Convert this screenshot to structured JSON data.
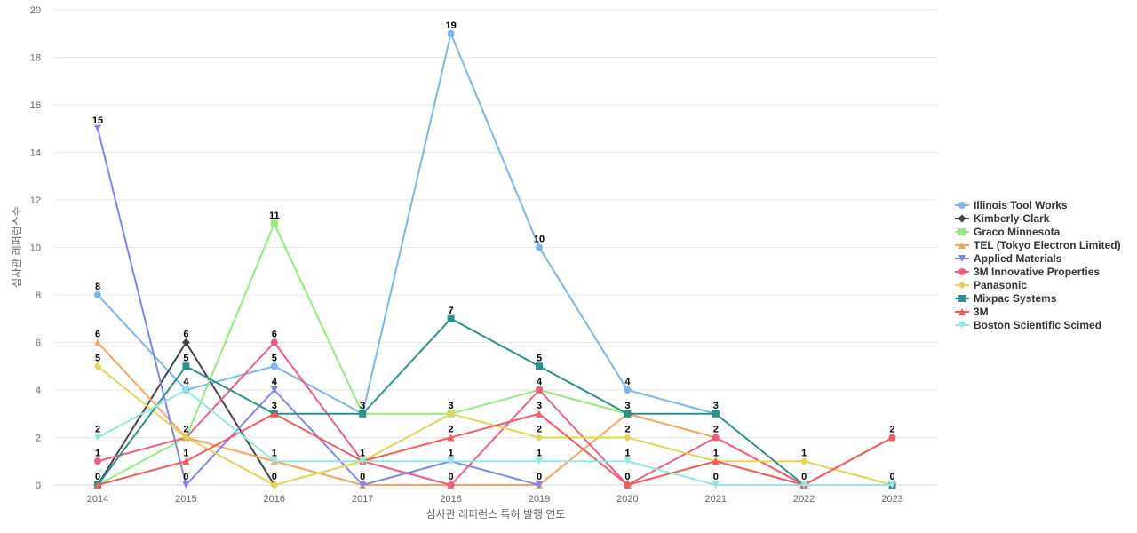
{
  "chart_data": {
    "type": "line",
    "title": "",
    "xlabel": "심사관 레퍼런스 특허 발행 연도",
    "ylabel": "심사관 레퍼런스수",
    "x": [
      "2014",
      "2015",
      "2016",
      "2017",
      "2018",
      "2019",
      "2020",
      "2021",
      "2022",
      "2023"
    ],
    "ylim": [
      0,
      20
    ],
    "yticks": [
      0,
      2,
      4,
      6,
      8,
      10,
      12,
      14,
      16,
      18,
      20
    ],
    "grid": true,
    "legend_position": "right",
    "series": [
      {
        "name": "Illinois Tool Works",
        "color": "#7cb5ec",
        "marker": "circle",
        "values": [
          8,
          4,
          5,
          3,
          19,
          10,
          4,
          3,
          null,
          null
        ]
      },
      {
        "name": "Kimberly-Clark",
        "color": "#434348",
        "marker": "diamond",
        "values": [
          0,
          6,
          0,
          null,
          null,
          null,
          null,
          null,
          null,
          null
        ]
      },
      {
        "name": "Graco Minnesota",
        "color": "#90ed7d",
        "marker": "square",
        "values": [
          0,
          2,
          11,
          3,
          3,
          4,
          3,
          null,
          null,
          null
        ]
      },
      {
        "name": "TEL (Tokyo Electron Limited)",
        "color": "#f7a35c",
        "marker": "triangle",
        "values": [
          6,
          2,
          1,
          0,
          0,
          0,
          3,
          2,
          0,
          null
        ]
      },
      {
        "name": "Applied Materials",
        "color": "#8085e9",
        "marker": "triangle-down",
        "values": [
          15,
          0,
          4,
          0,
          1,
          0,
          null,
          null,
          null,
          null
        ]
      },
      {
        "name": "3M Innovative Properties",
        "color": "#f15c80",
        "marker": "circle",
        "values": [
          1,
          2,
          6,
          1,
          0,
          4,
          0,
          2,
          0,
          2
        ]
      },
      {
        "name": "Panasonic",
        "color": "#e4d354",
        "marker": "diamond",
        "values": [
          5,
          2,
          0,
          1,
          3,
          2,
          2,
          1,
          1,
          0
        ]
      },
      {
        "name": "Mixpac Systems",
        "color": "#2b908f",
        "marker": "square",
        "values": [
          0,
          5,
          3,
          3,
          7,
          5,
          3,
          3,
          0,
          0
        ]
      },
      {
        "name": "3M",
        "color": "#f45b5b",
        "marker": "triangle",
        "values": [
          0,
          1,
          3,
          1,
          2,
          3,
          0,
          1,
          0,
          2
        ]
      },
      {
        "name": "Boston Scientific Scimed",
        "color": "#91e8e1",
        "marker": "triangle-down",
        "values": [
          2,
          4,
          1,
          1,
          1,
          1,
          1,
          0,
          0,
          0
        ]
      }
    ],
    "data_labels": [
      {
        "x": "2014",
        "value": 15
      },
      {
        "x": "2014",
        "value": 8
      },
      {
        "x": "2014",
        "value": 6
      },
      {
        "x": "2014",
        "value": 5
      },
      {
        "x": "2014",
        "value": 2
      },
      {
        "x": "2014",
        "value": 1
      },
      {
        "x": "2014",
        "value": 0
      },
      {
        "x": "2015",
        "value": 6
      },
      {
        "x": "2015",
        "value": 5
      },
      {
        "x": "2015",
        "value": 4
      },
      {
        "x": "2015",
        "value": 2
      },
      {
        "x": "2015",
        "value": 1
      },
      {
        "x": "2015",
        "value": 0
      },
      {
        "x": "2016",
        "value": 11
      },
      {
        "x": "2016",
        "value": 6
      },
      {
        "x": "2016",
        "value": 5
      },
      {
        "x": "2016",
        "value": 4
      },
      {
        "x": "2016",
        "value": 3
      },
      {
        "x": "2016",
        "value": 1
      },
      {
        "x": "2016",
        "value": 0
      },
      {
        "x": "2017",
        "value": 3
      },
      {
        "x": "2017",
        "value": 1
      },
      {
        "x": "2017",
        "value": 0
      },
      {
        "x": "2018",
        "value": 19
      },
      {
        "x": "2018",
        "value": 7
      },
      {
        "x": "2018",
        "value": 3
      },
      {
        "x": "2018",
        "value": 2
      },
      {
        "x": "2018",
        "value": 1
      },
      {
        "x": "2018",
        "value": 0
      },
      {
        "x": "2019",
        "value": 10
      },
      {
        "x": "2019",
        "value": 5
      },
      {
        "x": "2019",
        "value": 4
      },
      {
        "x": "2019",
        "value": 3
      },
      {
        "x": "2019",
        "value": 2
      },
      {
        "x": "2019",
        "value": 1
      },
      {
        "x": "2019",
        "value": 0
      },
      {
        "x": "2020",
        "value": 4
      },
      {
        "x": "2020",
        "value": 3
      },
      {
        "x": "2020",
        "value": 2
      },
      {
        "x": "2020",
        "value": 1
      },
      {
        "x": "2020",
        "value": 0
      },
      {
        "x": "2021",
        "value": 3
      },
      {
        "x": "2021",
        "value": 2
      },
      {
        "x": "2021",
        "value": 1
      },
      {
        "x": "2021",
        "value": 0
      },
      {
        "x": "2022",
        "value": 1
      },
      {
        "x": "2022",
        "value": 0
      },
      {
        "x": "2023",
        "value": 2
      },
      {
        "x": "2023",
        "value": 0
      }
    ]
  }
}
